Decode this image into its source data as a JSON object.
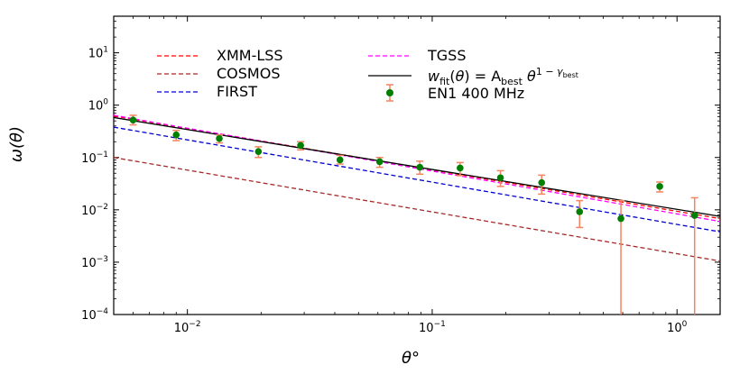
{
  "chart_data": {
    "type": "line",
    "title": "",
    "xlabel": "θ°",
    "ylabel": "ω(θ)",
    "xscale": "log",
    "yscale": "log",
    "xlim": [
      0.005,
      1.5
    ],
    "ylim": [
      0.0001,
      50
    ],
    "grid": false,
    "legend_position": "top-left",
    "x_ticks": [
      {
        "value": 0.01,
        "base": "10",
        "exp": "−2"
      },
      {
        "value": 0.1,
        "base": "10",
        "exp": "−1"
      },
      {
        "value": 1,
        "base": "10",
        "exp": "0"
      }
    ],
    "y_ticks": [
      {
        "value": 0.0001,
        "base": "10",
        "exp": "−4"
      },
      {
        "value": 0.001,
        "base": "10",
        "exp": "−3"
      },
      {
        "value": 0.01,
        "base": "10",
        "exp": "−2"
      },
      {
        "value": 0.1,
        "base": "10",
        "exp": "−1"
      },
      {
        "value": 1,
        "base": "10",
        "exp": "0"
      },
      {
        "value": 10,
        "base": "10",
        "exp": "1"
      }
    ],
    "series": [
      {
        "name": "XMM-LSS",
        "style": "dashed",
        "color": "#ff0000",
        "x": [
          0.005,
          1.5
        ],
        "y": [
          0.62,
          0.0068
        ]
      },
      {
        "name": "COSMOS",
        "style": "dashed",
        "color": "#a52a2a",
        "x": [
          0.005,
          1.5
        ],
        "y": [
          0.1,
          0.00105
        ]
      },
      {
        "name": "FIRST",
        "style": "dashed",
        "color": "#0000cd",
        "x": [
          0.005,
          1.5
        ],
        "y": [
          0.38,
          0.0038
        ]
      },
      {
        "name": "TGSS",
        "style": "dashed",
        "color": "#ff00ff",
        "x": [
          0.005,
          1.5
        ],
        "y": [
          0.64,
          0.006
        ]
      },
      {
        "name": "w_fit(θ) = A_best θ^(1 − γ_best)",
        "style": "solid",
        "color": "#000000",
        "x": [
          0.005,
          1.5
        ],
        "y": [
          0.58,
          0.0075
        ]
      }
    ],
    "points": {
      "name": "EN1 400 MHz",
      "marker_color": "#008000",
      "error_color": "#f4845f",
      "data": [
        {
          "x": 0.006,
          "y": 0.52,
          "err_lo": 0.42,
          "err_hi": 0.64
        },
        {
          "x": 0.009,
          "y": 0.27,
          "err_lo": 0.21,
          "err_hi": 0.33
        },
        {
          "x": 0.0135,
          "y": 0.23,
          "err_lo": 0.19,
          "err_hi": 0.27
        },
        {
          "x": 0.0195,
          "y": 0.13,
          "err_lo": 0.1,
          "err_hi": 0.16
        },
        {
          "x": 0.029,
          "y": 0.17,
          "err_lo": 0.14,
          "err_hi": 0.2
        },
        {
          "x": 0.042,
          "y": 0.09,
          "err_lo": 0.075,
          "err_hi": 0.11
        },
        {
          "x": 0.061,
          "y": 0.083,
          "err_lo": 0.065,
          "err_hi": 0.1
        },
        {
          "x": 0.089,
          "y": 0.065,
          "err_lo": 0.048,
          "err_hi": 0.085
        },
        {
          "x": 0.13,
          "y": 0.063,
          "err_lo": 0.045,
          "err_hi": 0.08
        },
        {
          "x": 0.19,
          "y": 0.041,
          "err_lo": 0.028,
          "err_hi": 0.056
        },
        {
          "x": 0.28,
          "y": 0.033,
          "err_lo": 0.02,
          "err_hi": 0.046
        },
        {
          "x": 0.4,
          "y": 0.0092,
          "err_lo": 0.0046,
          "err_hi": 0.015
        },
        {
          "x": 0.59,
          "y": 0.0068,
          "err_lo": 0.0001,
          "err_hi": 0.015
        },
        {
          "x": 0.85,
          "y": 0.028,
          "err_lo": 0.022,
          "err_hi": 0.034
        },
        {
          "x": 1.18,
          "y": 0.0078,
          "err_lo": 0.0001,
          "err_hi": 0.017
        }
      ]
    },
    "legend": [
      {
        "label": "XMM-LSS",
        "kind": "line",
        "style": "dashed",
        "color": "#ff0000"
      },
      {
        "label": "COSMOS",
        "kind": "line",
        "style": "dashed",
        "color": "#a52a2a"
      },
      {
        "label": "FIRST",
        "kind": "line",
        "style": "dashed",
        "color": "#0000cd"
      },
      {
        "label": "TGSS",
        "kind": "line",
        "style": "dashed",
        "color": "#ff00ff"
      },
      {
        "label": "w_fit(θ) = A_best θ^(1 − γ_best)",
        "kind": "line",
        "style": "solid",
        "color": "#000000"
      },
      {
        "label": "EN1 400 MHz",
        "kind": "errorpoint",
        "color": "#008000",
        "error_color": "#f4845f"
      }
    ],
    "legend_labels": {
      "xmm": "XMM-LSS",
      "cosmos": "COSMOS",
      "first": "FIRST",
      "tgss": "TGSS",
      "en1": "EN1 400 MHz",
      "fit": {
        "w": "w",
        "fit_sub": "fit",
        "theta": "θ",
        "eq": ") = A",
        "best_sub": "best",
        "theta2": " θ",
        "exp_one": "1 − ",
        "exp_gamma": "γ",
        "exp_best": "best"
      }
    }
  }
}
